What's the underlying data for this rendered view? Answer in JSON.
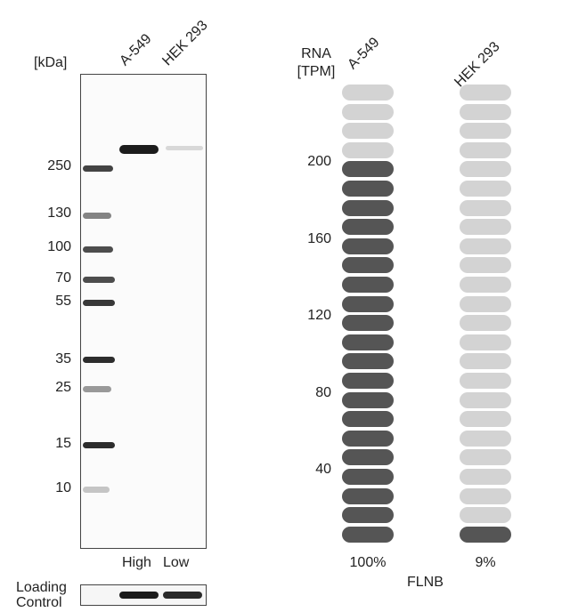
{
  "western_blot": {
    "kda_unit": "[kDa]",
    "lanes": [
      "A-549",
      "HEK 293"
    ],
    "markers": [
      "250",
      "130",
      "100",
      "70",
      "55",
      "35",
      "25",
      "15",
      "10"
    ],
    "lane_levels": [
      "High",
      "Low"
    ],
    "loading_control": "Loading Control"
  },
  "rna": {
    "header": "RNA [TPM]",
    "cell_lines": [
      "A-549",
      "HEK 293"
    ],
    "axis_ticks": [
      "200",
      "160",
      "120",
      "80",
      "40"
    ],
    "percentages": [
      "100%",
      "9%"
    ],
    "gene": "FLNB"
  },
  "chart_data": {
    "type": "bar",
    "categories": [
      "A-549",
      "HEK 293"
    ],
    "values": [
      100,
      9
    ],
    "unit": "%",
    "ylabel": "RNA [TPM]",
    "yticks": [
      40,
      80,
      120,
      160,
      200
    ],
    "total_segments": 24,
    "filled_segments": [
      20,
      1
    ],
    "colors": {
      "filled": "#555555",
      "empty": "#d3d3d3"
    },
    "gene": "FLNB"
  }
}
